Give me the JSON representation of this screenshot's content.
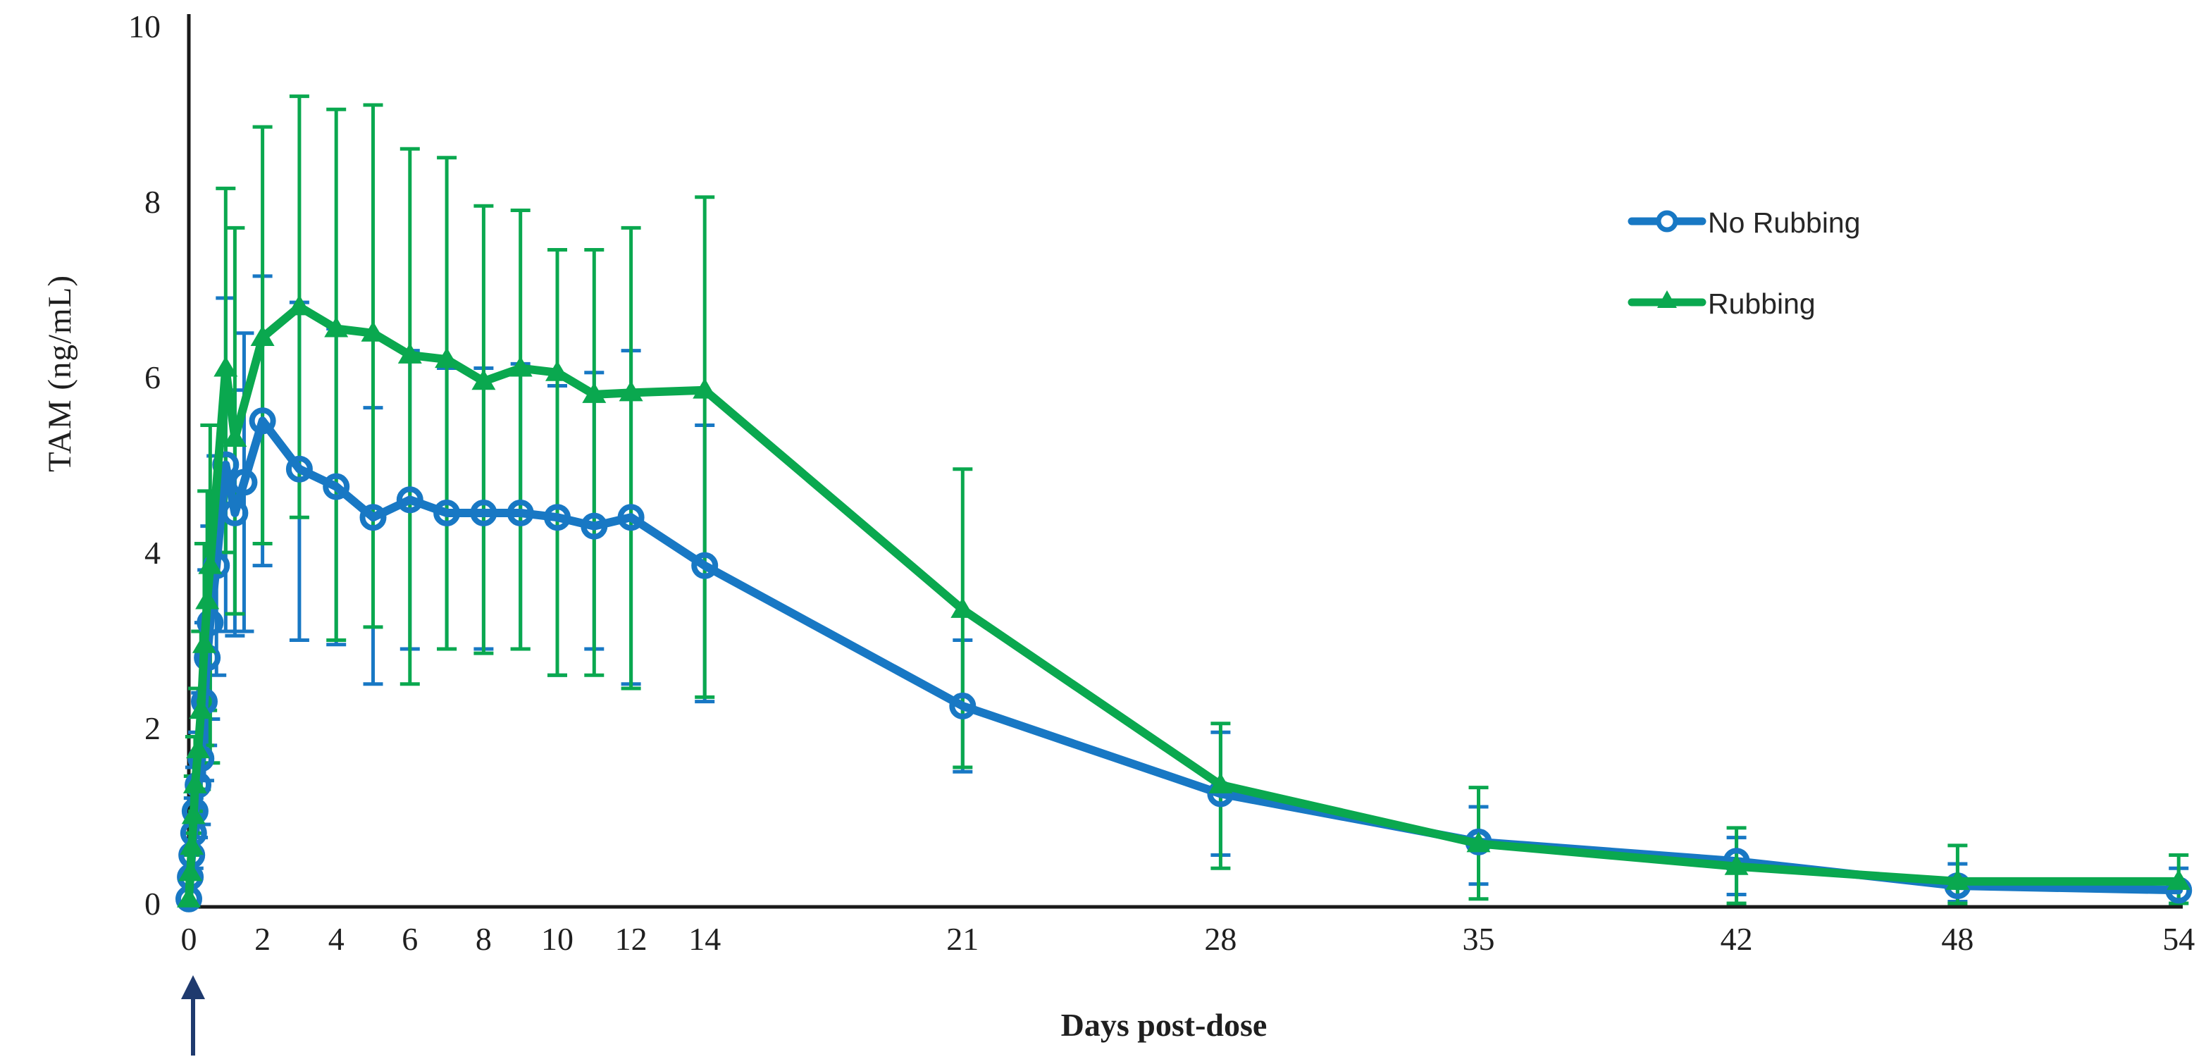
{
  "chart_data": {
    "type": "line",
    "title": "",
    "xlabel": "Days post-dose",
    "ylabel": "TAM  (ng/mL)",
    "xlim": [
      0,
      54
    ],
    "ylim": [
      0,
      10
    ],
    "x_ticks": [
      0,
      2,
      4,
      6,
      8,
      10,
      12,
      14,
      21,
      28,
      35,
      42,
      48,
      54
    ],
    "y_ticks": [
      0,
      2,
      4,
      6,
      8,
      10
    ],
    "grid": false,
    "legend_position": "upper-right",
    "axis_color": "#1a1a1a",
    "text_color": "#1f1f1f",
    "arrow_color": "#1f3a6e",
    "dose_arrow_x": 0,
    "error_bars": "mean ± SD, vertical bars with caps",
    "series": [
      {
        "name": "No Rubbing",
        "color": "#1878c4",
        "marker": "circle",
        "points_format": [
          "day",
          "value",
          "err_low",
          "err_high"
        ],
        "points": [
          [
            0,
            0.05,
            null,
            null
          ],
          [
            0.04,
            0.3,
            null,
            null
          ],
          [
            0.08,
            0.55,
            null,
            null
          ],
          [
            0.13,
            0.8,
            0.4,
            1.2
          ],
          [
            0.17,
            1.05,
            0.55,
            1.55
          ],
          [
            0.25,
            1.35,
            0.75,
            1.95
          ],
          [
            0.33,
            1.65,
            0.9,
            2.4
          ],
          [
            0.42,
            2.3,
            1.4,
            3.2
          ],
          [
            0.5,
            2.8,
            1.8,
            3.8
          ],
          [
            0.58,
            3.2,
            2.1,
            4.3
          ],
          [
            0.75,
            3.85,
            2.6,
            5.1
          ],
          [
            1,
            5.0,
            3.1,
            6.9
          ],
          [
            1.25,
            4.45,
            3.05,
            5.85
          ],
          [
            1.5,
            4.8,
            3.1,
            6.5
          ],
          [
            2,
            5.5,
            3.85,
            7.15
          ],
          [
            3,
            4.95,
            3.0,
            6.85
          ],
          [
            4,
            4.75,
            2.95,
            6.55
          ],
          [
            5,
            4.4,
            2.5,
            5.65
          ],
          [
            6,
            4.6,
            2.9,
            6.3
          ],
          [
            7,
            4.45,
            2.9,
            6.1
          ],
          [
            8,
            4.45,
            2.9,
            6.1
          ],
          [
            9,
            4.45,
            2.9,
            6.15
          ],
          [
            10,
            4.4,
            2.6,
            5.9
          ],
          [
            11,
            4.3,
            2.9,
            6.05
          ],
          [
            12,
            4.4,
            2.5,
            6.3
          ],
          [
            14,
            3.85,
            2.3,
            5.45
          ],
          [
            21,
            2.25,
            1.5,
            3.0
          ],
          [
            28,
            1.25,
            0.55,
            1.95
          ],
          [
            35,
            0.7,
            0.22,
            1.1
          ],
          [
            42,
            0.48,
            0.1,
            0.75
          ],
          [
            48,
            0.2,
            0.02,
            0.45
          ],
          [
            54,
            0.15,
            0.0,
            0.4
          ]
        ]
      },
      {
        "name": "Rubbing",
        "color": "#0aa84f",
        "marker": "triangle",
        "points_format": [
          "day",
          "value",
          "err_low",
          "err_high"
        ],
        "points": [
          [
            0,
            0.05,
            null,
            null
          ],
          [
            0.04,
            0.35,
            null,
            null
          ],
          [
            0.08,
            0.65,
            null,
            null
          ],
          [
            0.13,
            1.0,
            0.55,
            1.45
          ],
          [
            0.17,
            1.35,
            0.8,
            1.9
          ],
          [
            0.25,
            1.75,
            1.05,
            2.45
          ],
          [
            0.33,
            2.2,
            1.3,
            3.1
          ],
          [
            0.42,
            2.95,
            1.8,
            4.1
          ],
          [
            0.5,
            3.45,
            2.2,
            4.7
          ],
          [
            0.58,
            3.85,
            1.6,
            5.45
          ],
          [
            1,
            6.1,
            4.0,
            8.15
          ],
          [
            1.25,
            5.3,
            3.3,
            7.7
          ],
          [
            2,
            6.45,
            4.1,
            8.85
          ],
          [
            3,
            6.8,
            4.4,
            9.2
          ],
          [
            4,
            6.55,
            3.0,
            9.05
          ],
          [
            5,
            6.5,
            3.15,
            9.1
          ],
          [
            6,
            6.25,
            2.5,
            8.6
          ],
          [
            7,
            6.2,
            2.9,
            8.5
          ],
          [
            8,
            5.95,
            2.85,
            7.95
          ],
          [
            9,
            6.1,
            2.9,
            7.9
          ],
          [
            10,
            6.05,
            2.6,
            7.45
          ],
          [
            11,
            5.8,
            2.6,
            7.45
          ],
          [
            12,
            5.82,
            2.45,
            7.7
          ],
          [
            14,
            5.85,
            2.35,
            8.05
          ],
          [
            21,
            3.35,
            1.55,
            4.95
          ],
          [
            28,
            1.35,
            0.4,
            2.05
          ],
          [
            35,
            0.68,
            0.05,
            1.32
          ],
          [
            42,
            0.42,
            0.0,
            0.86
          ],
          [
            48,
            0.25,
            0.0,
            0.66
          ],
          [
            54,
            0.25,
            0.0,
            0.55
          ]
        ]
      }
    ]
  }
}
